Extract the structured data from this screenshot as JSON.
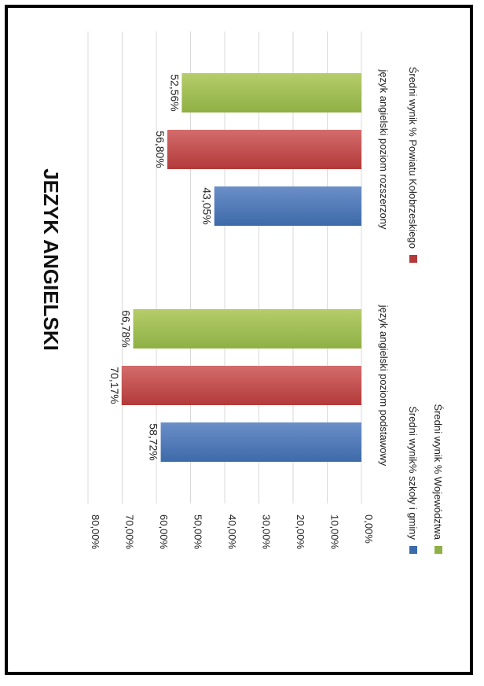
{
  "chart_data": {
    "type": "bar",
    "orientation": "rotated-90-clockwise",
    "title": "JEZYK ANGIELSKI",
    "categories": [
      "język angielski poziom podstawowy",
      "język  angielski poziom rozszerzony"
    ],
    "series": [
      {
        "name": "Średni wynik% szkoły i gminy",
        "values": [
          58.72,
          43.05
        ],
        "labels": [
          "58,72%",
          "43,05%"
        ]
      },
      {
        "name": "Średni wynik % Powiatu Kołobrzeskiego",
        "values": [
          70.17,
          56.8
        ],
        "labels": [
          "70,17%",
          "56,80%"
        ]
      },
      {
        "name": "Średni wynik % Województwa",
        "values": [
          66.78,
          52.56
        ],
        "labels": [
          "66,78%",
          "52,56%"
        ]
      }
    ],
    "ylim": [
      0,
      80
    ],
    "ticks": [
      "0,00%",
      "10,00%",
      "20,00%",
      "30,00%",
      "40,00%",
      "50,00%",
      "60,00%",
      "70,00%",
      "80,00%"
    ],
    "grid": true,
    "legend_position": "bottom"
  },
  "colors": {
    "series": [
      {
        "light": "#6b8fc8",
        "dark": "#3d6aa9"
      },
      {
        "light": "#d46c6c",
        "dark": "#b33a3a"
      },
      {
        "light": "#b5cd6a",
        "dark": "#8fb045"
      }
    ],
    "grid": "#d9d9d9",
    "text": "#222222"
  }
}
